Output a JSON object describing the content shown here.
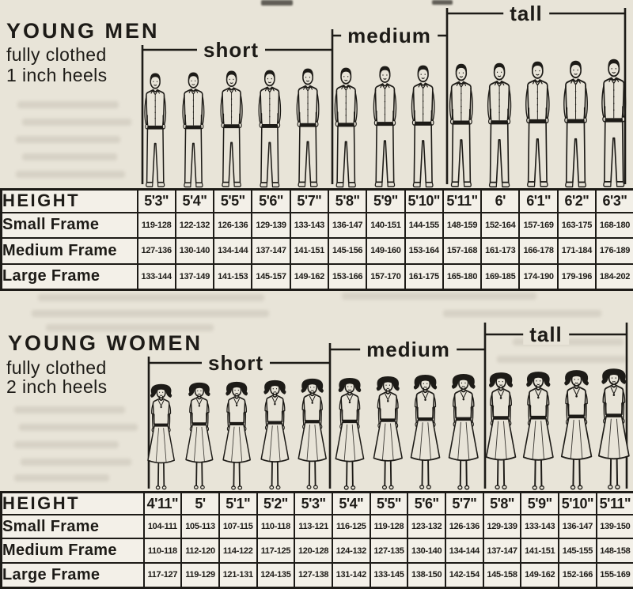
{
  "colors": {
    "paper": "#e8e4d8",
    "cell": "#f3f0e8",
    "ink": "#1d1b17"
  },
  "men": {
    "title": "YOUNG MEN",
    "subtitle_lines": [
      "fully clothed",
      "1 inch heels"
    ],
    "groups": [
      {
        "label": "short",
        "columns": "5'3\" to 5'7\""
      },
      {
        "label": "medium",
        "columns": "5'8\" to 5'10\""
      },
      {
        "label": "tall",
        "columns": "5'11\" to 6'3\""
      }
    ],
    "table": {
      "corner_label": "HEIGHT",
      "columns": [
        "5'3\"",
        "5'4\"",
        "5'5\"",
        "5'6\"",
        "5'7\"",
        "5'8\"",
        "5'9\"",
        "5'10\"",
        "5'11\"",
        "6'",
        "6'1\"",
        "6'2\"",
        "6'3\""
      ],
      "rows": [
        {
          "label": "Small Frame",
          "values": [
            "119-128",
            "122-132",
            "126-136",
            "129-139",
            "133-143",
            "136-147",
            "140-151",
            "144-155",
            "148-159",
            "152-164",
            "157-169",
            "163-175",
            "168-180"
          ]
        },
        {
          "label": "Medium Frame",
          "values": [
            "127-136",
            "130-140",
            "134-144",
            "137-147",
            "141-151",
            "145-156",
            "149-160",
            "153-164",
            "157-168",
            "161-173",
            "166-178",
            "171-184",
            "176-189"
          ]
        },
        {
          "label": "Large Frame",
          "values": [
            "133-144",
            "137-149",
            "141-153",
            "145-157",
            "149-162",
            "153-166",
            "157-170",
            "161-175",
            "165-180",
            "169-185",
            "174-190",
            "179-196",
            "184-202"
          ]
        }
      ]
    }
  },
  "women": {
    "title": "YOUNG WOMEN",
    "subtitle_lines": [
      "fully clothed",
      "2 inch heels"
    ],
    "groups": [
      {
        "label": "short",
        "columns": "4'11\" to 5'3\""
      },
      {
        "label": "medium",
        "columns": "5'4\" to 5'7\""
      },
      {
        "label": "tall",
        "columns": "5'8\" to 5'11\""
      }
    ],
    "table": {
      "corner_label": "HEIGHT",
      "columns": [
        "4'11\"",
        "5'",
        "5'1\"",
        "5'2\"",
        "5'3\"",
        "5'4\"",
        "5'5\"",
        "5'6\"",
        "5'7\"",
        "5'8\"",
        "5'9\"",
        "5'10\"",
        "5'11\""
      ],
      "rows": [
        {
          "label": "Small Frame",
          "values": [
            "104-111",
            "105-113",
            "107-115",
            "110-118",
            "113-121",
            "116-125",
            "119-128",
            "123-132",
            "126-136",
            "129-139",
            "133-143",
            "136-147",
            "139-150"
          ]
        },
        {
          "label": "Medium Frame",
          "values": [
            "110-118",
            "112-120",
            "114-122",
            "117-125",
            "120-128",
            "124-132",
            "127-135",
            "130-140",
            "134-144",
            "137-147",
            "141-151",
            "145-155",
            "148-158"
          ]
        },
        {
          "label": "Large Frame",
          "values": [
            "117-127",
            "119-129",
            "121-131",
            "124-135",
            "127-138",
            "131-142",
            "133-145",
            "138-150",
            "142-154",
            "145-158",
            "149-162",
            "152-166",
            "155-169"
          ]
        }
      ]
    }
  }
}
